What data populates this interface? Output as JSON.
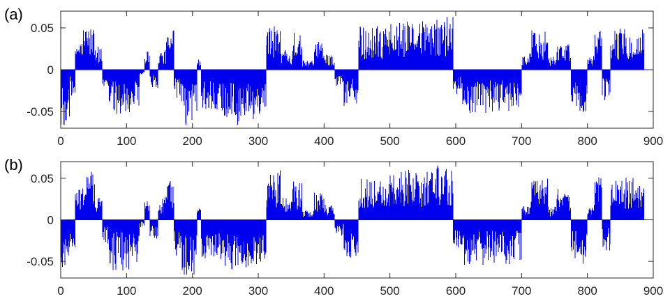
{
  "chart_data": [
    {
      "type": "bar",
      "panel_label": "(a)",
      "xlim": [
        0,
        900
      ],
      "ylim": [
        -0.07,
        0.07
      ],
      "xticks": [
        "0",
        "100",
        "200",
        "300",
        "400",
        "500",
        "600",
        "700",
        "800",
        "900"
      ],
      "yticks": [
        "-0.05",
        "0",
        "0.05"
      ],
      "grid": false,
      "bar_color": "#0000ee",
      "n_points": 886,
      "segments": [
        [
          0,
          14,
          -0.048
        ],
        [
          14,
          22,
          -0.022
        ],
        [
          22,
          33,
          0.028
        ],
        [
          33,
          52,
          0.04
        ],
        [
          52,
          63,
          0.02
        ],
        [
          63,
          72,
          -0.018
        ],
        [
          72,
          120,
          -0.04
        ],
        [
          120,
          127,
          -0.006
        ],
        [
          127,
          135,
          0.018
        ],
        [
          135,
          148,
          -0.018
        ],
        [
          148,
          160,
          0.018
        ],
        [
          160,
          172,
          0.034
        ],
        [
          172,
          183,
          -0.03
        ],
        [
          183,
          207,
          -0.048
        ],
        [
          207,
          213,
          0.01
        ],
        [
          213,
          245,
          -0.036
        ],
        [
          245,
          265,
          -0.044
        ],
        [
          265,
          272,
          -0.05
        ],
        [
          272,
          312,
          -0.042
        ],
        [
          312,
          334,
          0.04
        ],
        [
          334,
          352,
          0.018
        ],
        [
          352,
          367,
          0.032
        ],
        [
          367,
          385,
          0.008
        ],
        [
          385,
          400,
          0.024
        ],
        [
          400,
          416,
          0.014
        ],
        [
          416,
          430,
          -0.014
        ],
        [
          430,
          452,
          -0.032
        ],
        [
          452,
          500,
          0.036
        ],
        [
          500,
          560,
          0.04
        ],
        [
          560,
          596,
          0.046
        ],
        [
          596,
          610,
          -0.024
        ],
        [
          610,
          630,
          -0.04
        ],
        [
          630,
          700,
          -0.036
        ],
        [
          700,
          712,
          0.012
        ],
        [
          712,
          740,
          0.034
        ],
        [
          740,
          752,
          0.012
        ],
        [
          752,
          775,
          0.024
        ],
        [
          775,
          785,
          -0.03
        ],
        [
          785,
          800,
          -0.04
        ],
        [
          800,
          810,
          0.012
        ],
        [
          810,
          822,
          0.034
        ],
        [
          822,
          835,
          -0.025
        ],
        [
          835,
          886,
          0.034
        ]
      ]
    },
    {
      "type": "bar",
      "panel_label": "(b)",
      "xlim": [
        0,
        900
      ],
      "ylim": [
        -0.07,
        0.07
      ],
      "xticks": [
        "0",
        "100",
        "200",
        "300",
        "400",
        "500",
        "600",
        "700",
        "800",
        "900"
      ],
      "yticks": [
        "-0.05",
        "0",
        "0.05"
      ],
      "grid": false,
      "bar_color": "#0000ee",
      "n_points": 886,
      "segments": [
        [
          0,
          14,
          -0.052
        ],
        [
          14,
          22,
          -0.024
        ],
        [
          22,
          33,
          0.03
        ],
        [
          33,
          52,
          0.042
        ],
        [
          52,
          63,
          0.022
        ],
        [
          63,
          72,
          -0.02
        ],
        [
          72,
          120,
          -0.042
        ],
        [
          120,
          127,
          -0.006
        ],
        [
          127,
          135,
          0.02
        ],
        [
          135,
          148,
          -0.018
        ],
        [
          148,
          160,
          0.02
        ],
        [
          160,
          172,
          0.036
        ],
        [
          172,
          183,
          -0.032
        ],
        [
          183,
          207,
          -0.05
        ],
        [
          207,
          213,
          0.01
        ],
        [
          213,
          245,
          -0.038
        ],
        [
          245,
          265,
          -0.046
        ],
        [
          265,
          272,
          -0.052
        ],
        [
          272,
          312,
          -0.044
        ],
        [
          312,
          334,
          0.042
        ],
        [
          334,
          352,
          0.02
        ],
        [
          352,
          367,
          0.034
        ],
        [
          367,
          385,
          0.008
        ],
        [
          385,
          400,
          0.026
        ],
        [
          400,
          416,
          0.014
        ],
        [
          416,
          430,
          -0.014
        ],
        [
          430,
          452,
          -0.034
        ],
        [
          452,
          500,
          0.038
        ],
        [
          500,
          560,
          0.042
        ],
        [
          560,
          596,
          0.048
        ],
        [
          596,
          610,
          -0.026
        ],
        [
          610,
          630,
          -0.042
        ],
        [
          630,
          700,
          -0.038
        ],
        [
          700,
          712,
          0.012
        ],
        [
          712,
          740,
          0.036
        ],
        [
          740,
          752,
          0.012
        ],
        [
          752,
          775,
          0.026
        ],
        [
          775,
          785,
          -0.032
        ],
        [
          785,
          800,
          -0.042
        ],
        [
          800,
          810,
          0.012
        ],
        [
          810,
          822,
          0.036
        ],
        [
          822,
          835,
          -0.026
        ],
        [
          835,
          886,
          0.036
        ]
      ]
    }
  ]
}
